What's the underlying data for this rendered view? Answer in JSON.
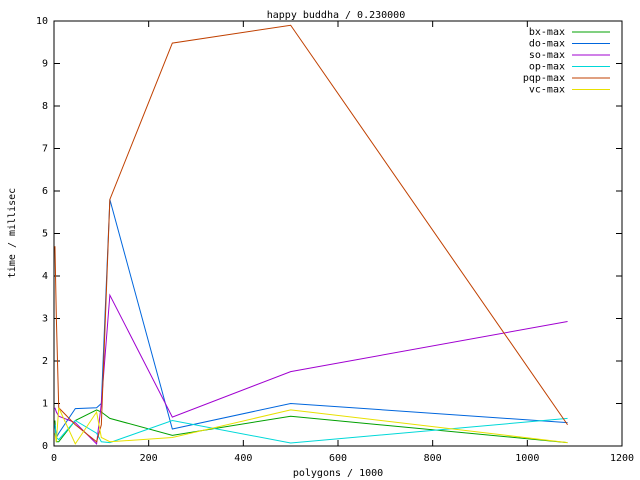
{
  "chart_data": {
    "type": "line",
    "title": "happy buddha / 0.230000",
    "x_label": "polygons / 1000",
    "y_label": "time / millisec",
    "x": [
      2,
      5,
      10,
      45,
      90,
      100,
      118,
      250,
      500,
      1085
    ],
    "series": [
      {
        "name": "bx-max",
        "color": "#00a000",
        "values": [
          0.6,
          0.1,
          0.1,
          0.6,
          0.85,
          0.8,
          0.65,
          0.25,
          0.7,
          0.08
        ]
      },
      {
        "name": "do-max",
        "color": "#0066dd",
        "values": [
          0.5,
          0.2,
          0.3,
          0.88,
          0.9,
          1.0,
          5.8,
          0.4,
          1.0,
          0.55
        ]
      },
      {
        "name": "so-max",
        "color": "#a000d0",
        "values": [
          0.9,
          0.8,
          0.7,
          0.55,
          0.05,
          1.0,
          3.55,
          0.68,
          1.75,
          2.93
        ]
      },
      {
        "name": "op-max",
        "color": "#00d8d8",
        "values": [
          0.5,
          0.2,
          0.15,
          0.6,
          0.3,
          0.1,
          0.08,
          0.6,
          0.07,
          0.65
        ]
      },
      {
        "name": "pqp-max",
        "color": "#c04000",
        "values": [
          4.7,
          3.0,
          0.9,
          0.5,
          0.1,
          0.5,
          5.8,
          9.48,
          9.9,
          0.5
        ]
      },
      {
        "name": "vc-max",
        "color": "#e8e000",
        "values": [
          0.3,
          0.1,
          0.9,
          0.05,
          0.8,
          0.2,
          0.1,
          0.2,
          0.85,
          0.08
        ]
      }
    ],
    "xlim": [
      0,
      1200
    ],
    "xticks": [
      0,
      200,
      400,
      600,
      800,
      1000,
      1200
    ],
    "ylim": [
      0,
      10
    ],
    "yticks": [
      0,
      1,
      2,
      3,
      4,
      5,
      6,
      7,
      8,
      9,
      10
    ],
    "legend": "top-right"
  }
}
